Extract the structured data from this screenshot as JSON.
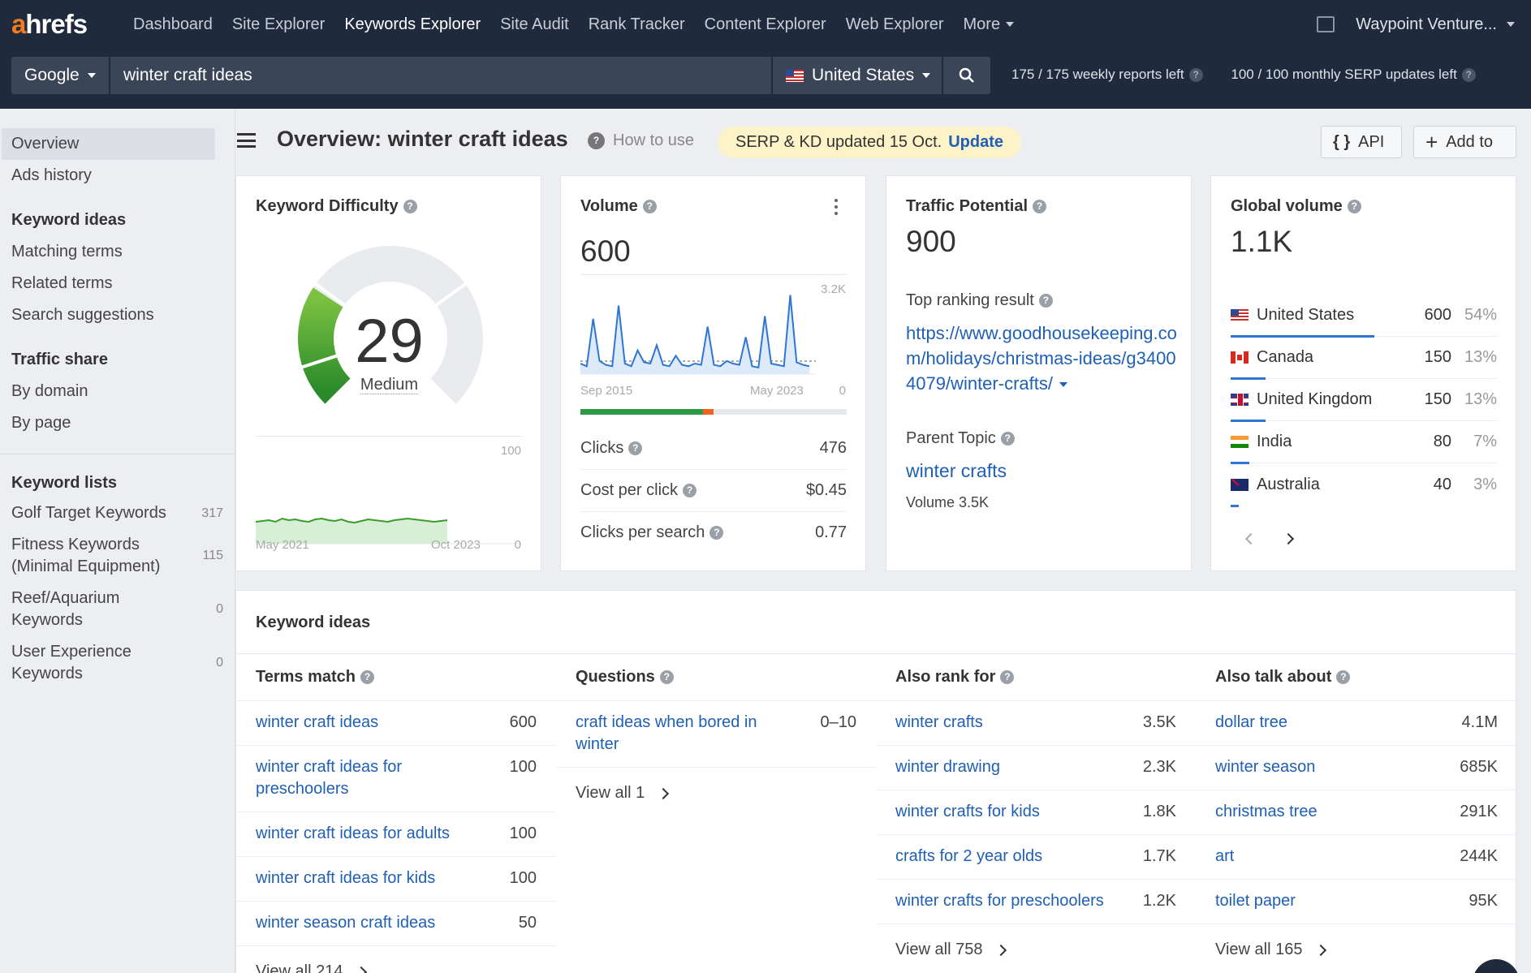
{
  "nav": {
    "logo_a": "a",
    "logo_rest": "hrefs",
    "items": [
      "Dashboard",
      "Site Explorer",
      "Keywords Explorer",
      "Site Audit",
      "Rank Tracker",
      "Content Explorer",
      "Web Explorer",
      "More"
    ],
    "account": "Waypoint Venture..."
  },
  "search": {
    "engine": "Google",
    "query": "winter craft ideas",
    "country": "United States",
    "weekly_reports": "175  /  175  weekly reports left",
    "monthly_updates": "100  /  100  monthly SERP updates left"
  },
  "sidebar": {
    "overview": "Overview",
    "ads_history": "Ads history",
    "keyword_ideas_head": "Keyword ideas",
    "matching_terms": "Matching terms",
    "related_terms": "Related terms",
    "search_suggestions": "Search suggestions",
    "traffic_share_head": "Traffic share",
    "by_domain": "By domain",
    "by_page": "By page",
    "keyword_lists_head": "Keyword lists",
    "lists": [
      {
        "name": "Golf Target Keywords",
        "count": "317"
      },
      {
        "name": "Fitness Keywords (Minimal Equipment)",
        "count": "115"
      },
      {
        "name": "Reef/Aquarium Keywords",
        "count": "0"
      },
      {
        "name": "User Experience Keywords",
        "count": "0"
      }
    ]
  },
  "header": {
    "title": "Overview: winter craft ideas",
    "how_to_use": "How to use",
    "update_notice": "SERP & KD updated 15 Oct.",
    "update_link": "Update",
    "api_button": "API",
    "add_to_button": "Add to"
  },
  "kd_card": {
    "title": "Keyword Difficulty",
    "value": "29",
    "value_num": 29,
    "label": "Medium",
    "chart_max": "100",
    "chart_min": "0",
    "date_start": "May 2021",
    "date_end": "Oct 2023",
    "history": [
      27,
      28,
      29,
      27,
      31,
      29,
      30,
      28,
      27,
      30,
      31,
      29,
      28,
      30,
      27,
      26,
      28,
      30,
      29,
      28,
      27,
      29,
      30,
      31,
      30,
      29,
      28,
      27,
      28,
      29
    ]
  },
  "volume_card": {
    "title": "Volume",
    "value": "600",
    "chart_max": "3.2K",
    "chart_min": "0",
    "date_start": "Sep 2015",
    "date_end": "May 2023",
    "clicks_label": "Clicks",
    "clicks": "476",
    "cpc_label": "Cost per click",
    "cpc": "$0.45",
    "cps_label": "Clicks per search",
    "cps": "0.77",
    "organic_share": 0.46,
    "paid_share": 0.04
  },
  "tp_card": {
    "title": "Traffic Potential",
    "value": "900",
    "top_result_label": "Top ranking result",
    "top_result_url": "https://www.goodhousekeeping.com/holidays/christmas-ideas/g34004079/winter-crafts/",
    "parent_topic_label": "Parent Topic",
    "parent_topic": "winter crafts",
    "parent_volume": "Volume 3.5K"
  },
  "gv_card": {
    "title": "Global volume",
    "value": "1.1K",
    "countries": [
      {
        "name": "United States",
        "flag": "us",
        "volume": "600",
        "pct": "54%",
        "share": 0.54
      },
      {
        "name": "Canada",
        "flag": "ca",
        "volume": "150",
        "pct": "13%",
        "share": 0.13
      },
      {
        "name": "United Kingdom",
        "flag": "gb",
        "volume": "150",
        "pct": "13%",
        "share": 0.13
      },
      {
        "name": "India",
        "flag": "in",
        "volume": "80",
        "pct": "7%",
        "share": 0.07
      },
      {
        "name": "Australia",
        "flag": "au",
        "volume": "40",
        "pct": "3%",
        "share": 0.03
      }
    ]
  },
  "ideas": {
    "title": "Keyword ideas",
    "columns": [
      {
        "head": "Terms match",
        "rows": [
          {
            "kw": "winter craft ideas",
            "v": "600"
          },
          {
            "kw": "winter craft ideas for preschoolers",
            "v": "100"
          },
          {
            "kw": "winter craft ideas for adults",
            "v": "100"
          },
          {
            "kw": "winter craft ideas for kids",
            "v": "100"
          },
          {
            "kw": "winter season craft ideas",
            "v": "50"
          }
        ],
        "view_all": "View all 214"
      },
      {
        "head": "Questions",
        "rows": [
          {
            "kw": "craft ideas when bored in winter",
            "v": "0–10"
          }
        ],
        "view_all": "View all 1"
      },
      {
        "head": "Also rank for",
        "rows": [
          {
            "kw": "winter crafts",
            "v": "3.5K"
          },
          {
            "kw": "winter drawing",
            "v": "2.3K"
          },
          {
            "kw": "winter crafts for kids",
            "v": "1.8K"
          },
          {
            "kw": "crafts for 2 year olds",
            "v": "1.7K"
          },
          {
            "kw": "winter crafts for preschoolers",
            "v": "1.2K"
          }
        ],
        "view_all": "View all 758"
      },
      {
        "head": "Also talk about",
        "rows": [
          {
            "kw": "dollar tree",
            "v": "4.1M"
          },
          {
            "kw": "winter season",
            "v": "685K"
          },
          {
            "kw": "christmas tree",
            "v": "291K"
          },
          {
            "kw": "art",
            "v": "244K"
          },
          {
            "kw": "toilet paper",
            "v": "95K"
          }
        ],
        "view_all": "View all 165"
      }
    ]
  },
  "colors": {
    "accent": "#f27b20",
    "nav_bg": "#1f2a3d",
    "link": "#1f5fb4",
    "kd_green": "#3a9d2a",
    "volume_blue": "#2f76d2"
  }
}
